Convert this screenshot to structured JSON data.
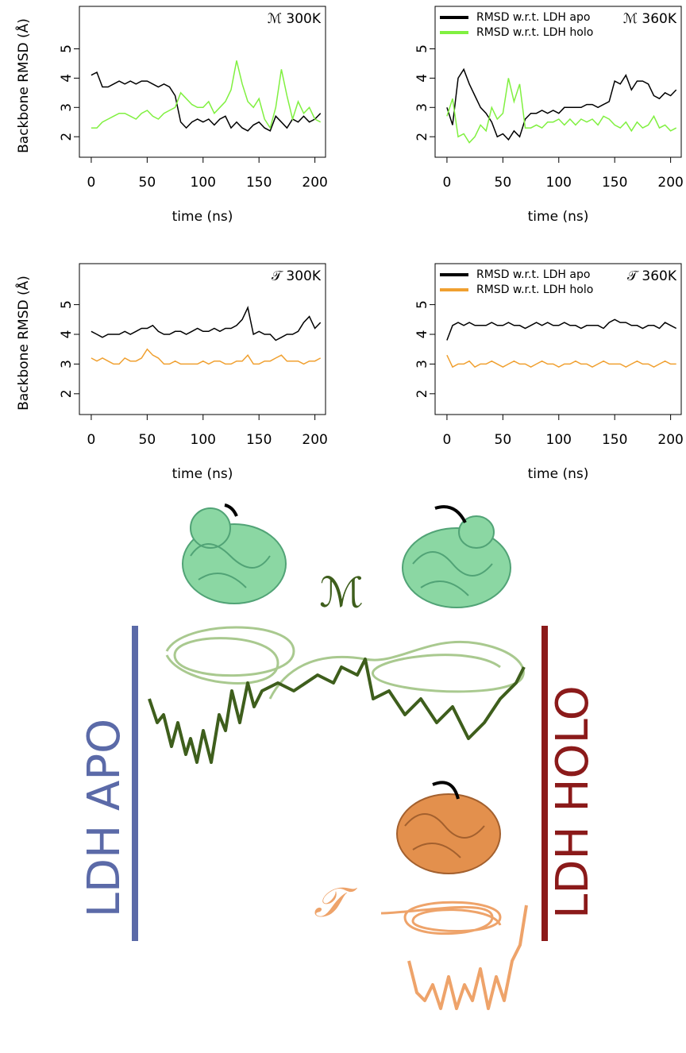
{
  "chart_data": [
    {
      "type": "line",
      "title": "ℳ 300K",
      "xlabel": "time (ns)",
      "ylabel": "Backbone RMSD (Å)",
      "x": [
        0,
        5,
        10,
        15,
        20,
        25,
        30,
        35,
        40,
        45,
        50,
        55,
        60,
        65,
        70,
        75,
        80,
        85,
        90,
        95,
        100,
        105,
        110,
        115,
        120,
        125,
        130,
        135,
        140,
        145,
        150,
        155,
        160,
        165,
        170,
        175,
        180,
        185,
        190,
        195,
        200,
        205
      ],
      "series": [
        {
          "color": "#000000",
          "values": [
            4.1,
            4.2,
            3.7,
            3.7,
            3.8,
            3.9,
            3.8,
            3.9,
            3.8,
            3.9,
            3.9,
            3.8,
            3.7,
            3.8,
            3.7,
            3.4,
            2.5,
            2.3,
            2.5,
            2.6,
            2.5,
            2.6,
            2.4,
            2.6,
            2.7,
            2.3,
            2.5,
            2.3,
            2.2,
            2.4,
            2.5,
            2.3,
            2.2,
            2.7,
            2.5,
            2.3,
            2.6,
            2.5,
            2.7,
            2.5,
            2.6,
            2.8
          ]
        },
        {
          "color": "#80f040",
          "values": [
            2.3,
            2.3,
            2.5,
            2.6,
            2.7,
            2.8,
            2.8,
            2.7,
            2.6,
            2.8,
            2.9,
            2.7,
            2.6,
            2.8,
            2.9,
            3.0,
            3.5,
            3.3,
            3.1,
            3.0,
            3.0,
            3.2,
            2.8,
            3.0,
            3.2,
            3.6,
            4.6,
            3.8,
            3.2,
            3.0,
            3.3,
            2.6,
            2.3,
            3.0,
            4.3,
            3.4,
            2.6,
            3.2,
            2.8,
            3.0,
            2.6,
            2.5
          ]
        }
      ],
      "xlim": [
        -10.6,
        209.5
      ],
      "ylim": [
        1.3,
        6.45
      ],
      "xticks": [
        0,
        50,
        100,
        150,
        200
      ],
      "yticks": [
        2,
        3,
        4,
        5
      ]
    },
    {
      "type": "line",
      "title": "ℳ 360K",
      "xlabel": "time (ns)",
      "legend": "top-left",
      "x": [
        0,
        5,
        10,
        15,
        20,
        25,
        30,
        35,
        40,
        45,
        50,
        55,
        60,
        65,
        70,
        75,
        80,
        85,
        90,
        95,
        100,
        105,
        110,
        115,
        120,
        125,
        130,
        135,
        140,
        145,
        150,
        155,
        160,
        165,
        170,
        175,
        180,
        185,
        190,
        195,
        200,
        205
      ],
      "series": [
        {
          "name": "RMSD w.r.t. LDH apo",
          "color": "#000000",
          "values": [
            3.0,
            2.4,
            4.0,
            4.3,
            3.8,
            3.4,
            3.0,
            2.8,
            2.5,
            2.0,
            2.1,
            1.9,
            2.2,
            2.0,
            2.6,
            2.8,
            2.8,
            2.9,
            2.8,
            2.9,
            2.8,
            3.0,
            3.0,
            3.0,
            3.0,
            3.1,
            3.1,
            3.0,
            3.1,
            3.2,
            3.9,
            3.8,
            4.1,
            3.6,
            3.9,
            3.9,
            3.8,
            3.4,
            3.3,
            3.5,
            3.4,
            3.6
          ]
        },
        {
          "name": "RMSD w.r.t. LDH holo",
          "color": "#80f040",
          "values": [
            2.7,
            3.3,
            2.0,
            2.1,
            1.8,
            2.0,
            2.4,
            2.2,
            3.0,
            2.6,
            2.8,
            4.0,
            3.2,
            3.8,
            2.3,
            2.3,
            2.4,
            2.3,
            2.5,
            2.5,
            2.6,
            2.4,
            2.6,
            2.4,
            2.6,
            2.5,
            2.6,
            2.4,
            2.7,
            2.6,
            2.4,
            2.3,
            2.5,
            2.2,
            2.5,
            2.3,
            2.4,
            2.7,
            2.3,
            2.4,
            2.2,
            2.3
          ]
        }
      ],
      "xlim": [
        -10.6,
        209.5
      ],
      "ylim": [
        1.3,
        6.45
      ],
      "xticks": [
        0,
        50,
        100,
        150,
        200
      ],
      "yticks": [
        2,
        3,
        4,
        5
      ]
    },
    {
      "type": "line",
      "title": "𝒯 300K",
      "xlabel": "time (ns)",
      "ylabel": "Backbone RMSD (Å)",
      "x": [
        0,
        5,
        10,
        15,
        20,
        25,
        30,
        35,
        40,
        45,
        50,
        55,
        60,
        65,
        70,
        75,
        80,
        85,
        90,
        95,
        100,
        105,
        110,
        115,
        120,
        125,
        130,
        135,
        140,
        145,
        150,
        155,
        160,
        165,
        170,
        175,
        180,
        185,
        190,
        195,
        200,
        205
      ],
      "series": [
        {
          "color": "#000000",
          "values": [
            4.1,
            4.0,
            3.9,
            4.0,
            4.0,
            4.0,
            4.1,
            4.0,
            4.1,
            4.2,
            4.2,
            4.3,
            4.1,
            4.0,
            4.0,
            4.1,
            4.1,
            4.0,
            4.1,
            4.2,
            4.1,
            4.1,
            4.2,
            4.1,
            4.2,
            4.2,
            4.3,
            4.5,
            4.9,
            4.0,
            4.1,
            4.0,
            4.0,
            3.8,
            3.9,
            4.0,
            4.0,
            4.1,
            4.4,
            4.6,
            4.2,
            4.4
          ]
        },
        {
          "color": "#f0a030",
          "values": [
            3.2,
            3.1,
            3.2,
            3.1,
            3.0,
            3.0,
            3.2,
            3.1,
            3.1,
            3.2,
            3.5,
            3.3,
            3.2,
            3.0,
            3.0,
            3.1,
            3.0,
            3.0,
            3.0,
            3.0,
            3.1,
            3.0,
            3.1,
            3.1,
            3.0,
            3.0,
            3.1,
            3.1,
            3.3,
            3.0,
            3.0,
            3.1,
            3.1,
            3.2,
            3.3,
            3.1,
            3.1,
            3.1,
            3.0,
            3.1,
            3.1,
            3.2
          ]
        }
      ],
      "xlim": [
        -10.6,
        209.5
      ],
      "ylim": [
        1.3,
        6.38
      ],
      "xticks": [
        0,
        50,
        100,
        150,
        200
      ],
      "yticks": [
        2,
        3,
        4,
        5
      ]
    },
    {
      "type": "line",
      "title": "𝒯 360K",
      "xlabel": "time (ns)",
      "legend": "top-left",
      "x": [
        0,
        5,
        10,
        15,
        20,
        25,
        30,
        35,
        40,
        45,
        50,
        55,
        60,
        65,
        70,
        75,
        80,
        85,
        90,
        95,
        100,
        105,
        110,
        115,
        120,
        125,
        130,
        135,
        140,
        145,
        150,
        155,
        160,
        165,
        170,
        175,
        180,
        185,
        190,
        195,
        200,
        205
      ],
      "series": [
        {
          "name": "RMSD w.r.t. LDH apo",
          "color": "#000000",
          "values": [
            3.8,
            4.3,
            4.4,
            4.3,
            4.4,
            4.3,
            4.3,
            4.3,
            4.4,
            4.3,
            4.3,
            4.4,
            4.3,
            4.3,
            4.2,
            4.3,
            4.4,
            4.3,
            4.4,
            4.3,
            4.3,
            4.4,
            4.3,
            4.3,
            4.2,
            4.3,
            4.3,
            4.3,
            4.2,
            4.4,
            4.5,
            4.4,
            4.4,
            4.3,
            4.3,
            4.2,
            4.3,
            4.3,
            4.2,
            4.4,
            4.3,
            4.2
          ]
        },
        {
          "name": "RMSD w.r.t. LDH holo",
          "color": "#f0a030",
          "values": [
            3.3,
            2.9,
            3.0,
            3.0,
            3.1,
            2.9,
            3.0,
            3.0,
            3.1,
            3.0,
            2.9,
            3.0,
            3.1,
            3.0,
            3.0,
            2.9,
            3.0,
            3.1,
            3.0,
            3.0,
            2.9,
            3.0,
            3.0,
            3.1,
            3.0,
            3.0,
            2.9,
            3.0,
            3.1,
            3.0,
            3.0,
            3.0,
            2.9,
            3.0,
            3.1,
            3.0,
            3.0,
            2.9,
            3.0,
            3.1,
            3.0,
            3.0
          ]
        }
      ],
      "xlim": [
        -10.6,
        209.5
      ],
      "ylim": [
        1.3,
        6.38
      ],
      "xticks": [
        0,
        50,
        100,
        150,
        200
      ],
      "yticks": [
        2,
        3,
        4,
        5
      ]
    }
  ],
  "diagram": {
    "apo_label": "LDH APO",
    "holo_label": "LDH HOLO",
    "m_label": "ℳ",
    "t_label": "𝒯"
  }
}
